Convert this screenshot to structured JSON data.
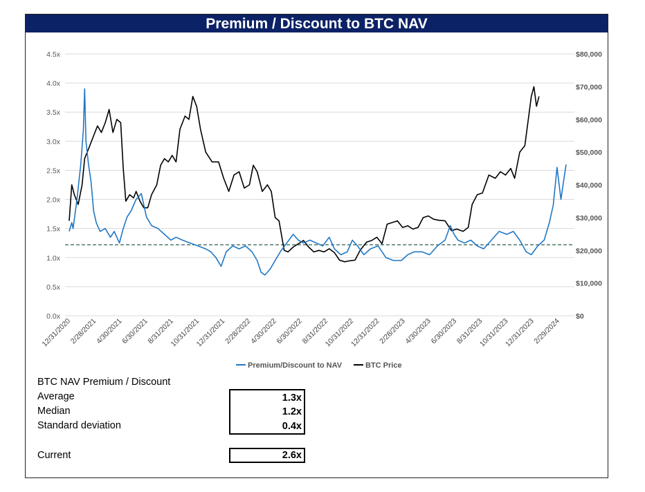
{
  "title": "Premium / Discount to BTC NAV",
  "chart_data": {
    "type": "line",
    "title": "Premium / Discount to BTC NAV",
    "x_tick_labels": [
      "12/31/2020",
      "2/28/2021",
      "4/30/2021",
      "6/30/2021",
      "8/31/2021",
      "10/31/2021",
      "12/31/2021",
      "2/28/2022",
      "4/30/2022",
      "6/30/2022",
      "8/31/2022",
      "10/31/2022",
      "12/31/2022",
      "2/28/2023",
      "4/30/2023",
      "6/30/2023",
      "8/31/2023",
      "10/31/2023",
      "12/31/2023",
      "2/29/2024"
    ],
    "y_left": {
      "label": "Premium/Discount to NAV",
      "range": [
        0,
        4.5
      ],
      "ticks": [
        "0.0x",
        "0.5x",
        "1.0x",
        "1.5x",
        "2.0x",
        "2.5x",
        "3.0x",
        "3.5x",
        "4.0x",
        "4.5x"
      ]
    },
    "y_right": {
      "label": "BTC Price",
      "range": [
        0,
        80000
      ],
      "ticks": [
        "$0",
        "$10,000",
        "$20,000",
        "$30,000",
        "$40,000",
        "$50,000",
        "$60,000",
        "$70,000",
        "$80,000"
      ]
    },
    "series": [
      {
        "name": "Premium/Discount to NAV",
        "axis": "left",
        "color": "#1f77c4",
        "points": [
          [
            0,
            1.45
          ],
          [
            0.1,
            1.6
          ],
          [
            0.15,
            1.5
          ],
          [
            0.3,
            2.0
          ],
          [
            0.45,
            2.6
          ],
          [
            0.55,
            3.2
          ],
          [
            0.6,
            3.9
          ],
          [
            0.65,
            3.0
          ],
          [
            0.75,
            2.6
          ],
          [
            0.85,
            2.3
          ],
          [
            0.95,
            1.8
          ],
          [
            1.05,
            1.6
          ],
          [
            1.2,
            1.45
          ],
          [
            1.4,
            1.5
          ],
          [
            1.6,
            1.35
          ],
          [
            1.75,
            1.45
          ],
          [
            1.95,
            1.25
          ],
          [
            2.1,
            1.5
          ],
          [
            2.25,
            1.7
          ],
          [
            2.4,
            1.8
          ],
          [
            2.5,
            1.9
          ],
          [
            2.6,
            2.0
          ],
          [
            2.8,
            2.1
          ],
          [
            2.9,
            1.9
          ],
          [
            3.0,
            1.7
          ],
          [
            3.2,
            1.55
          ],
          [
            3.45,
            1.5
          ],
          [
            3.7,
            1.4
          ],
          [
            3.95,
            1.3
          ],
          [
            4.15,
            1.35
          ],
          [
            4.4,
            1.3
          ],
          [
            4.7,
            1.25
          ],
          [
            5.0,
            1.2
          ],
          [
            5.3,
            1.15
          ],
          [
            5.5,
            1.1
          ],
          [
            5.7,
            1.0
          ],
          [
            5.9,
            0.85
          ],
          [
            6.1,
            1.1
          ],
          [
            6.35,
            1.2
          ],
          [
            6.6,
            1.15
          ],
          [
            6.85,
            1.2
          ],
          [
            7.1,
            1.1
          ],
          [
            7.3,
            0.95
          ],
          [
            7.45,
            0.75
          ],
          [
            7.6,
            0.7
          ],
          [
            7.8,
            0.8
          ],
          [
            8.0,
            0.95
          ],
          [
            8.2,
            1.1
          ],
          [
            8.45,
            1.25
          ],
          [
            8.7,
            1.4
          ],
          [
            8.9,
            1.3
          ],
          [
            9.1,
            1.25
          ],
          [
            9.35,
            1.3
          ],
          [
            9.6,
            1.25
          ],
          [
            9.85,
            1.2
          ],
          [
            10.1,
            1.35
          ],
          [
            10.3,
            1.15
          ],
          [
            10.55,
            1.05
          ],
          [
            10.8,
            1.1
          ],
          [
            11.0,
            1.3
          ],
          [
            11.2,
            1.2
          ],
          [
            11.45,
            1.05
          ],
          [
            11.7,
            1.15
          ],
          [
            12.0,
            1.2
          ],
          [
            12.3,
            1.0
          ],
          [
            12.6,
            0.95
          ],
          [
            12.9,
            0.95
          ],
          [
            13.15,
            1.05
          ],
          [
            13.4,
            1.1
          ],
          [
            13.7,
            1.1
          ],
          [
            14.0,
            1.05
          ],
          [
            14.3,
            1.2
          ],
          [
            14.6,
            1.3
          ],
          [
            14.8,
            1.55
          ],
          [
            14.95,
            1.4
          ],
          [
            15.1,
            1.3
          ],
          [
            15.35,
            1.25
          ],
          [
            15.6,
            1.3
          ],
          [
            15.85,
            1.2
          ],
          [
            16.1,
            1.15
          ],
          [
            16.4,
            1.3
          ],
          [
            16.7,
            1.45
          ],
          [
            17.0,
            1.4
          ],
          [
            17.25,
            1.45
          ],
          [
            17.5,
            1.3
          ],
          [
            17.75,
            1.1
          ],
          [
            17.95,
            1.05
          ],
          [
            18.2,
            1.2
          ],
          [
            18.45,
            1.3
          ],
          [
            18.65,
            1.6
          ],
          [
            18.8,
            1.9
          ],
          [
            18.95,
            2.55
          ],
          [
            19.1,
            2.0
          ],
          [
            19.2,
            2.3
          ],
          [
            19.3,
            2.6
          ]
        ]
      },
      {
        "name": "BTC Price",
        "axis": "right",
        "color": "#000000",
        "points": [
          [
            0,
            29000
          ],
          [
            0.1,
            40000
          ],
          [
            0.2,
            37000
          ],
          [
            0.35,
            34000
          ],
          [
            0.5,
            40000
          ],
          [
            0.6,
            48000
          ],
          [
            0.8,
            52000
          ],
          [
            0.95,
            55000
          ],
          [
            1.1,
            58000
          ],
          [
            1.25,
            56000
          ],
          [
            1.4,
            59000
          ],
          [
            1.55,
            63000
          ],
          [
            1.7,
            56000
          ],
          [
            1.85,
            60000
          ],
          [
            2.0,
            59000
          ],
          [
            2.1,
            45000
          ],
          [
            2.2,
            35000
          ],
          [
            2.35,
            37000
          ],
          [
            2.5,
            36000
          ],
          [
            2.6,
            38000
          ],
          [
            2.75,
            35000
          ],
          [
            2.9,
            33000
          ],
          [
            3.05,
            33000
          ],
          [
            3.2,
            37000
          ],
          [
            3.4,
            40000
          ],
          [
            3.55,
            46000
          ],
          [
            3.7,
            48000
          ],
          [
            3.85,
            47000
          ],
          [
            4.0,
            49000
          ],
          [
            4.15,
            47000
          ],
          [
            4.3,
            57000
          ],
          [
            4.5,
            61000
          ],
          [
            4.65,
            60000
          ],
          [
            4.8,
            67000
          ],
          [
            4.95,
            64000
          ],
          [
            5.1,
            57000
          ],
          [
            5.3,
            50000
          ],
          [
            5.55,
            47000
          ],
          [
            5.8,
            47000
          ],
          [
            6.0,
            42000
          ],
          [
            6.2,
            38000
          ],
          [
            6.4,
            43000
          ],
          [
            6.6,
            44000
          ],
          [
            6.8,
            39000
          ],
          [
            7.0,
            40000
          ],
          [
            7.15,
            46000
          ],
          [
            7.3,
            44000
          ],
          [
            7.5,
            38000
          ],
          [
            7.7,
            40000
          ],
          [
            7.85,
            38000
          ],
          [
            8.0,
            30000
          ],
          [
            8.15,
            29000
          ],
          [
            8.35,
            20000
          ],
          [
            8.5,
            19500
          ],
          [
            8.7,
            21000
          ],
          [
            8.9,
            22000
          ],
          [
            9.1,
            23000
          ],
          [
            9.3,
            21000
          ],
          [
            9.5,
            19500
          ],
          [
            9.7,
            20000
          ],
          [
            9.9,
            19500
          ],
          [
            10.1,
            20500
          ],
          [
            10.3,
            19300
          ],
          [
            10.5,
            17000
          ],
          [
            10.7,
            16500
          ],
          [
            10.9,
            16800
          ],
          [
            11.1,
            17000
          ],
          [
            11.3,
            20000
          ],
          [
            11.55,
            22500
          ],
          [
            11.75,
            23000
          ],
          [
            11.95,
            24000
          ],
          [
            12.15,
            22000
          ],
          [
            12.35,
            28000
          ],
          [
            12.55,
            28500
          ],
          [
            12.75,
            29000
          ],
          [
            12.95,
            27000
          ],
          [
            13.15,
            27500
          ],
          [
            13.35,
            26500
          ],
          [
            13.55,
            27000
          ],
          [
            13.75,
            30000
          ],
          [
            13.95,
            30500
          ],
          [
            14.15,
            29500
          ],
          [
            14.35,
            29200
          ],
          [
            14.6,
            29000
          ],
          [
            14.85,
            26000
          ],
          [
            15.05,
            26500
          ],
          [
            15.3,
            25800
          ],
          [
            15.5,
            27000
          ],
          [
            15.65,
            34000
          ],
          [
            15.85,
            37000
          ],
          [
            16.05,
            37500
          ],
          [
            16.3,
            43000
          ],
          [
            16.55,
            42000
          ],
          [
            16.75,
            44000
          ],
          [
            16.95,
            43000
          ],
          [
            17.15,
            45000
          ],
          [
            17.3,
            42000
          ],
          [
            17.5,
            50000
          ],
          [
            17.7,
            52000
          ],
          [
            17.85,
            61000
          ],
          [
            17.95,
            67000
          ],
          [
            18.05,
            70000
          ],
          [
            18.15,
            64000
          ],
          [
            18.25,
            67000
          ]
        ]
      }
    ],
    "reference_line": {
      "axis": "left",
      "value": 1.22,
      "style": "dashed",
      "color": "#2e5e4e"
    },
    "legend": {
      "position": "bottom-center",
      "entries": [
        "Premium/Discount to NAV",
        "BTC Price"
      ]
    }
  },
  "stats": {
    "heading": "BTC NAV Premium / Discount",
    "rows": [
      {
        "label": "Average",
        "value": "1.3x"
      },
      {
        "label": "Median",
        "value": "1.2x"
      },
      {
        "label": "Standard deviation",
        "value": "0.4x"
      }
    ],
    "current": {
      "label": "Current",
      "value": "2.6x"
    }
  }
}
